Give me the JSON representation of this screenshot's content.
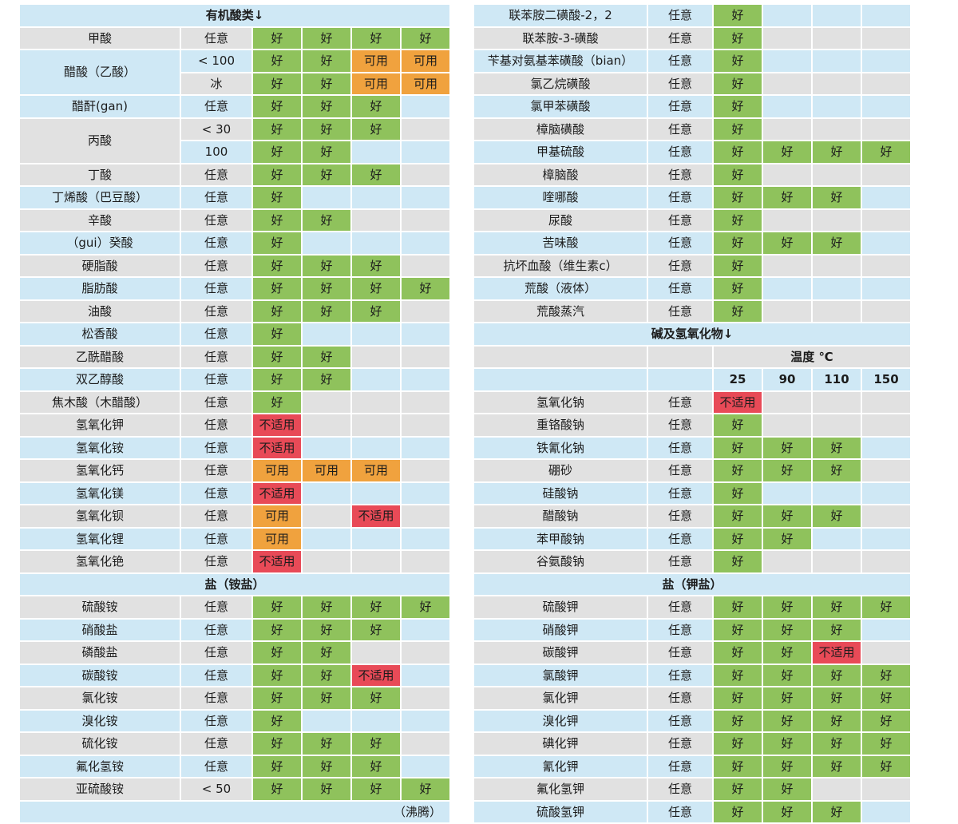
{
  "colors": {
    "good": "#8fc25c",
    "usable": "#f0a23e",
    "unsuitable": "#e84a57",
    "row_blue": "#cfe8f5",
    "row_gray": "#e1e1e1",
    "text": "#1c1c1c"
  },
  "rating_classes": {
    "好": "good",
    "可用": "usable",
    "不适用": "unsuitable"
  },
  "tables": {
    "left": {
      "rows": [
        {
          "t": "section",
          "label": "有机酸类↓",
          "shade": "blue"
        },
        {
          "t": "data",
          "name": "甲酸",
          "cond": "任意",
          "r": [
            "好",
            "好",
            "好",
            "好"
          ],
          "shade": "gray"
        },
        {
          "t": "data",
          "name": "醋酸（乙酸）",
          "name_rowspan": 2,
          "name_shade": "blue",
          "cond": "< 100",
          "r": [
            "好",
            "好",
            "可用",
            "可用"
          ],
          "shade": "blue"
        },
        {
          "t": "data",
          "name": null,
          "cond": "冰",
          "r": [
            "好",
            "好",
            "可用",
            "可用"
          ],
          "shade": "gray"
        },
        {
          "t": "data",
          "name": "醋酐(gan)",
          "cond": "任意",
          "r": [
            "好",
            "好",
            "好",
            ""
          ],
          "shade": "blue"
        },
        {
          "t": "data",
          "name": "丙酸",
          "name_rowspan": 2,
          "name_shade": "gray",
          "cond": "< 30",
          "r": [
            "好",
            "好",
            "好",
            ""
          ],
          "shade": "gray"
        },
        {
          "t": "data",
          "name": null,
          "cond": "100",
          "r": [
            "好",
            "好",
            "",
            ""
          ],
          "shade": "blue"
        },
        {
          "t": "data",
          "name": "丁酸",
          "cond": "任意",
          "r": [
            "好",
            "好",
            "好",
            ""
          ],
          "shade": "gray"
        },
        {
          "t": "data",
          "name": "丁烯酸（巴豆酸）",
          "cond": "任意",
          "r": [
            "好",
            "",
            "",
            ""
          ],
          "shade": "blue"
        },
        {
          "t": "data",
          "name": "辛酸",
          "cond": "任意",
          "r": [
            "好",
            "好",
            "",
            ""
          ],
          "shade": "gray"
        },
        {
          "t": "data",
          "name": "（gui）癸酸",
          "cond": "任意",
          "r": [
            "好",
            "",
            "",
            ""
          ],
          "shade": "blue"
        },
        {
          "t": "data",
          "name": "硬脂酸",
          "cond": "任意",
          "r": [
            "好",
            "好",
            "好",
            ""
          ],
          "shade": "gray"
        },
        {
          "t": "data",
          "name": "脂肪酸",
          "cond": "任意",
          "r": [
            "好",
            "好",
            "好",
            "好"
          ],
          "shade": "blue"
        },
        {
          "t": "data",
          "name": "油酸",
          "cond": "任意",
          "r": [
            "好",
            "好",
            "好",
            ""
          ],
          "shade": "gray"
        },
        {
          "t": "data",
          "name": "松香酸",
          "cond": "任意",
          "r": [
            "好",
            "",
            "",
            ""
          ],
          "shade": "blue"
        },
        {
          "t": "data",
          "name": "乙酰醋酸",
          "cond": "任意",
          "r": [
            "好",
            "好",
            "",
            ""
          ],
          "shade": "gray"
        },
        {
          "t": "data",
          "name": "双乙醇酸",
          "cond": "任意",
          "r": [
            "好",
            "好",
            "",
            ""
          ],
          "shade": "blue"
        },
        {
          "t": "data",
          "name": "焦木酸（木醋酸）",
          "cond": "任意",
          "r": [
            "好",
            "",
            "",
            ""
          ],
          "shade": "gray"
        },
        {
          "t": "data",
          "name": "氢氧化钾",
          "cond": "任意",
          "r": [
            "不适用",
            "",
            "",
            ""
          ],
          "shade": "gray"
        },
        {
          "t": "data",
          "name": "氢氧化铵",
          "cond": "任意",
          "r": [
            "不适用",
            "",
            "",
            ""
          ],
          "shade": "blue"
        },
        {
          "t": "data",
          "name": "氢氧化钙",
          "cond": "任意",
          "r": [
            "可用",
            "可用",
            "可用",
            ""
          ],
          "shade": "gray"
        },
        {
          "t": "data",
          "name": "氢氧化镁",
          "cond": "任意",
          "r": [
            "不适用",
            "",
            "",
            ""
          ],
          "shade": "blue"
        },
        {
          "t": "data",
          "name": "氢氧化钡",
          "cond": "任意",
          "r": [
            "可用",
            "",
            "不适用",
            ""
          ],
          "shade": "gray"
        },
        {
          "t": "data",
          "name": "氢氧化锂",
          "cond": "任意",
          "r": [
            "可用",
            "",
            "",
            ""
          ],
          "shade": "blue"
        },
        {
          "t": "data",
          "name": "氢氧化铯",
          "cond": "任意",
          "r": [
            "不适用",
            "",
            "",
            ""
          ],
          "shade": "gray"
        },
        {
          "t": "section",
          "label": "盐（铵盐）",
          "shade": "blue"
        },
        {
          "t": "data",
          "name": "硫酸铵",
          "cond": "任意",
          "r": [
            "好",
            "好",
            "好",
            "好"
          ],
          "shade": "gray"
        },
        {
          "t": "data",
          "name": "硝酸盐",
          "cond": "任意",
          "r": [
            "好",
            "好",
            "好",
            ""
          ],
          "shade": "blue"
        },
        {
          "t": "data",
          "name": "磷酸盐",
          "cond": "任意",
          "r": [
            "好",
            "好",
            "",
            ""
          ],
          "shade": "gray"
        },
        {
          "t": "data",
          "name": "碳酸铵",
          "cond": "任意",
          "r": [
            "好",
            "好",
            "不适用",
            ""
          ],
          "shade": "blue"
        },
        {
          "t": "data",
          "name": "氯化铵",
          "cond": "任意",
          "r": [
            "好",
            "好",
            "好",
            ""
          ],
          "shade": "gray"
        },
        {
          "t": "data",
          "name": "溴化铵",
          "cond": "任意",
          "r": [
            "好",
            "",
            "",
            ""
          ],
          "shade": "blue"
        },
        {
          "t": "data",
          "name": "硫化铵",
          "cond": "任意",
          "r": [
            "好",
            "好",
            "好",
            ""
          ],
          "shade": "gray"
        },
        {
          "t": "data",
          "name": "氟化氢铵",
          "cond": "任意",
          "r": [
            "好",
            "好",
            "好",
            ""
          ],
          "shade": "blue"
        },
        {
          "t": "data",
          "name": "亚硫酸铵",
          "cond": "< 50",
          "r": [
            "好",
            "好",
            "好",
            "好"
          ],
          "shade": "gray"
        },
        {
          "t": "note",
          "label": "（沸腾）",
          "shade": "blue"
        }
      ]
    },
    "right": {
      "rows": [
        {
          "t": "data",
          "name": "联苯胺二磺酸-2，2",
          "cond": "任意",
          "r": [
            "好",
            "",
            "",
            ""
          ],
          "shade": "blue"
        },
        {
          "t": "data",
          "name": "联苯胺-3-磺酸",
          "cond": "任意",
          "r": [
            "好",
            "",
            "",
            ""
          ],
          "shade": "gray"
        },
        {
          "t": "data",
          "name": "苄基对氨基苯磺酸（bian）",
          "cond": "任意",
          "r": [
            "好",
            "",
            "",
            ""
          ],
          "shade": "blue"
        },
        {
          "t": "data",
          "name": "氯乙烷磺酸",
          "cond": "任意",
          "r": [
            "好",
            "",
            "",
            ""
          ],
          "shade": "gray"
        },
        {
          "t": "data",
          "name": "氯甲苯磺酸",
          "cond": "任意",
          "r": [
            "好",
            "",
            "",
            ""
          ],
          "shade": "blue"
        },
        {
          "t": "data",
          "name": "樟脑磺酸",
          "cond": "任意",
          "r": [
            "好",
            "",
            "",
            ""
          ],
          "shade": "gray"
        },
        {
          "t": "data",
          "name": "甲基硫酸",
          "cond": "任意",
          "r": [
            "好",
            "好",
            "好",
            "好"
          ],
          "shade": "blue"
        },
        {
          "t": "data",
          "name": "樟脑酸",
          "cond": "任意",
          "r": [
            "好",
            "",
            "",
            ""
          ],
          "shade": "gray"
        },
        {
          "t": "data",
          "name": "喹哪酸",
          "cond": "任意",
          "r": [
            "好",
            "好",
            "好",
            ""
          ],
          "shade": "blue"
        },
        {
          "t": "data",
          "name": "尿酸",
          "cond": "任意",
          "r": [
            "好",
            "",
            "",
            ""
          ],
          "shade": "gray"
        },
        {
          "t": "data",
          "name": "苦味酸",
          "cond": "任意",
          "r": [
            "好",
            "好",
            "好",
            ""
          ],
          "shade": "blue"
        },
        {
          "t": "data",
          "name": "抗坏血酸（维生素c）",
          "cond": "任意",
          "r": [
            "好",
            "",
            "",
            ""
          ],
          "shade": "gray"
        },
        {
          "t": "data",
          "name": "荒酸（液体）",
          "cond": "任意",
          "r": [
            "好",
            "",
            "",
            ""
          ],
          "shade": "blue"
        },
        {
          "t": "data",
          "name": "荒酸蒸汽",
          "cond": "任意",
          "r": [
            "好",
            "",
            "",
            ""
          ],
          "shade": "gray"
        },
        {
          "t": "section",
          "label": "碱及氢氧化物↓",
          "shade": "blue"
        },
        {
          "t": "temp",
          "label": "温度 ℃",
          "shade": "gray"
        },
        {
          "t": "ticks",
          "ticks": [
            "25",
            "90",
            "110",
            "150"
          ],
          "shade": "blue"
        },
        {
          "t": "data",
          "name": "氢氧化钠",
          "cond": "任意",
          "r": [
            "不适用",
            "",
            "",
            ""
          ],
          "shade": "gray"
        },
        {
          "t": "data",
          "name": "重铬酸钠",
          "cond": "任意",
          "r": [
            "好",
            "",
            "",
            ""
          ],
          "shade": "gray"
        },
        {
          "t": "data",
          "name": "铁氰化钠",
          "cond": "任意",
          "r": [
            "好",
            "好",
            "好",
            ""
          ],
          "shade": "blue"
        },
        {
          "t": "data",
          "name": "硼砂",
          "cond": "任意",
          "r": [
            "好",
            "好",
            "好",
            ""
          ],
          "shade": "gray"
        },
        {
          "t": "data",
          "name": "硅酸钠",
          "cond": "任意",
          "r": [
            "好",
            "",
            "",
            ""
          ],
          "shade": "blue"
        },
        {
          "t": "data",
          "name": "醋酸钠",
          "cond": "任意",
          "r": [
            "好",
            "好",
            "好",
            ""
          ],
          "shade": "gray"
        },
        {
          "t": "data",
          "name": "苯甲酸钠",
          "cond": "任意",
          "r": [
            "好",
            "好",
            "",
            ""
          ],
          "shade": "blue"
        },
        {
          "t": "data",
          "name": "谷氨酸钠",
          "cond": "任意",
          "r": [
            "好",
            "",
            "",
            ""
          ],
          "shade": "gray"
        },
        {
          "t": "section",
          "label": "盐（钾盐）",
          "shade": "blue"
        },
        {
          "t": "data",
          "name": "硫酸钾",
          "cond": "任意",
          "r": [
            "好",
            "好",
            "好",
            "好"
          ],
          "shade": "gray"
        },
        {
          "t": "data",
          "name": "硝酸钾",
          "cond": "任意",
          "r": [
            "好",
            "好",
            "好",
            ""
          ],
          "shade": "blue"
        },
        {
          "t": "data",
          "name": "碳酸钾",
          "cond": "任意",
          "r": [
            "好",
            "好",
            "不适用",
            ""
          ],
          "shade": "gray"
        },
        {
          "t": "data",
          "name": "氯酸钾",
          "cond": "任意",
          "r": [
            "好",
            "好",
            "好",
            "好"
          ],
          "shade": "blue"
        },
        {
          "t": "data",
          "name": "氯化钾",
          "cond": "任意",
          "r": [
            "好",
            "好",
            "好",
            "好"
          ],
          "shade": "gray"
        },
        {
          "t": "data",
          "name": "溴化钾",
          "cond": "任意",
          "r": [
            "好",
            "好",
            "好",
            "好"
          ],
          "shade": "blue"
        },
        {
          "t": "data",
          "name": "碘化钾",
          "cond": "任意",
          "r": [
            "好",
            "好",
            "好",
            "好"
          ],
          "shade": "gray"
        },
        {
          "t": "data",
          "name": "氰化钾",
          "cond": "任意",
          "r": [
            "好",
            "好",
            "好",
            "好"
          ],
          "shade": "blue"
        },
        {
          "t": "data",
          "name": "氟化氢钾",
          "cond": "任意",
          "r": [
            "好",
            "好",
            "",
            ""
          ],
          "shade": "gray"
        },
        {
          "t": "data",
          "name": "硫酸氢钾",
          "cond": "任意",
          "r": [
            "好",
            "好",
            "好",
            ""
          ],
          "shade": "blue"
        }
      ]
    }
  }
}
